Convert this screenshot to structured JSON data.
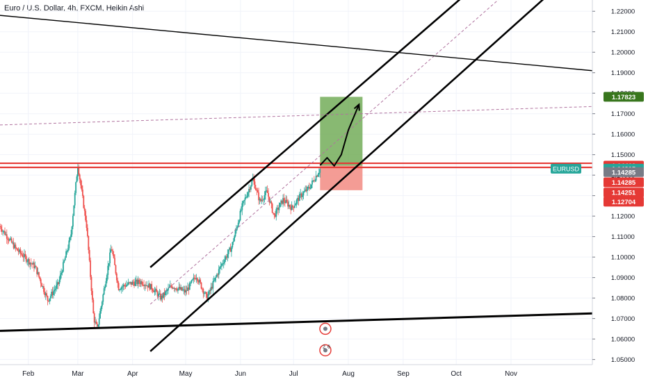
{
  "header": {
    "title": "Euro / U.S. Dollar, 4h, FXCM, Heikin Ashi"
  },
  "colors": {
    "bull": "#26a69a",
    "bear": "#ef5350",
    "channel": "#000000",
    "resistance": "#e53935",
    "target_zone": "#6aa84f",
    "stop_zone": "#f28b82",
    "dashed": "#b0729e",
    "grid": "#f0f3fa",
    "axis_text": "#131722"
  },
  "chart_data": {
    "type": "candlestick",
    "title": "Euro / U.S. Dollar, 4h, FXCM, Heikin Ashi",
    "symbol": "EURUSD",
    "x_ticks": [
      {
        "label": "Feb",
        "day": 31
      },
      {
        "label": "Mar",
        "day": 59
      },
      {
        "label": "Apr",
        "day": 90
      },
      {
        "label": "May",
        "day": 120
      },
      {
        "label": "Jun",
        "day": 151
      },
      {
        "label": "Jul",
        "day": 181
      },
      {
        "label": "Aug",
        "day": 212
      },
      {
        "label": "Sep",
        "day": 243
      },
      {
        "label": "Oct",
        "day": 273
      },
      {
        "label": "Nov",
        "day": 304
      }
    ],
    "x_range_days": [
      15,
      350
    ],
    "y_range": [
      1.0475,
      1.2255
    ],
    "y_ticks": [
      "1.05000",
      "1.06000",
      "1.07000",
      "1.08000",
      "1.09000",
      "1.10000",
      "1.11000",
      "1.12000",
      "1.13000",
      "1.14000",
      "1.15000",
      "1.16000",
      "1.17000",
      "1.18000",
      "1.19000",
      "1.20000",
      "1.21000",
      "1.22000"
    ],
    "price_path": [
      {
        "day": 15,
        "price": 1.115
      },
      {
        "day": 24,
        "price": 1.104
      },
      {
        "day": 35,
        "price": 1.095
      },
      {
        "day": 42,
        "price": 1.079
      },
      {
        "day": 48,
        "price": 1.087
      },
      {
        "day": 55,
        "price": 1.11
      },
      {
        "day": 59,
        "price": 1.145
      },
      {
        "day": 64,
        "price": 1.115
      },
      {
        "day": 68,
        "price": 1.07
      },
      {
        "day": 70,
        "price": 1.065
      },
      {
        "day": 75,
        "price": 1.09
      },
      {
        "day": 78,
        "price": 1.105
      },
      {
        "day": 82,
        "price": 1.085
      },
      {
        "day": 88,
        "price": 1.087
      },
      {
        "day": 95,
        "price": 1.088
      },
      {
        "day": 101,
        "price": 1.085
      },
      {
        "day": 106,
        "price": 1.08
      },
      {
        "day": 112,
        "price": 1.086
      },
      {
        "day": 120,
        "price": 1.083
      },
      {
        "day": 126,
        "price": 1.091
      },
      {
        "day": 132,
        "price": 1.08
      },
      {
        "day": 140,
        "price": 1.096
      },
      {
        "day": 146,
        "price": 1.105
      },
      {
        "day": 152,
        "price": 1.125
      },
      {
        "day": 158,
        "price": 1.138
      },
      {
        "day": 162,
        "price": 1.127
      },
      {
        "day": 166,
        "price": 1.132
      },
      {
        "day": 170,
        "price": 1.12
      },
      {
        "day": 175,
        "price": 1.128
      },
      {
        "day": 180,
        "price": 1.124
      },
      {
        "day": 185,
        "price": 1.13
      },
      {
        "day": 190,
        "price": 1.134
      },
      {
        "day": 196,
        "price": 1.143
      }
    ],
    "levels": [
      {
        "name": "resistance-top",
        "price": 1.1458
      },
      {
        "name": "resistance-bottom",
        "price": 1.1438
      }
    ],
    "trendlines": [
      {
        "name": "channel-upper",
        "from": {
          "day": 100,
          "price": 1.095
        },
        "to": {
          "day": 278,
          "price": 1.228
        }
      },
      {
        "name": "channel-lower",
        "from": {
          "day": 100,
          "price": 1.054
        },
        "to": {
          "day": 325,
          "price": 1.228
        }
      },
      {
        "name": "channel-mid-dashed",
        "from": {
          "day": 100,
          "price": 1.077
        },
        "to": {
          "day": 300,
          "price": 1.228
        }
      },
      {
        "name": "long-resistance",
        "from": {
          "day": 15,
          "price": 1.218
        },
        "to": {
          "day": 350,
          "price": 1.191
        }
      },
      {
        "name": "long-support",
        "from": {
          "day": 15,
          "price": 1.064
        },
        "to": {
          "day": 350,
          "price": 1.0725
        }
      },
      {
        "name": "horizontal-dashed",
        "from": {
          "day": 15,
          "price": 1.1645
        },
        "to": {
          "day": 350,
          "price": 1.1735
        }
      }
    ],
    "position": {
      "start_day": 196,
      "end_day": 220,
      "entry": 1.14462,
      "target": 1.17823,
      "stop": 1.13264
    },
    "projection": [
      {
        "day": 196,
        "price": 1.1448
      },
      {
        "day": 200,
        "price": 1.1485
      },
      {
        "day": 204,
        "price": 1.1445
      },
      {
        "day": 208,
        "price": 1.15
      },
      {
        "day": 212,
        "price": 1.162
      },
      {
        "day": 218,
        "price": 1.1745
      }
    ],
    "price_labels": [
      {
        "text": "1.17823",
        "price": 1.17823,
        "bg": "#38761d",
        "color": "#ffffff"
      },
      {
        "text": "1.14462",
        "price": 1.14462,
        "bg": "#e53935",
        "color": "#ffffff"
      },
      {
        "text": "1.14315",
        "price": 1.14315,
        "bg": "#26a69a",
        "color": "#ffffff",
        "tag": "EURUSD"
      },
      {
        "text": "1.14285",
        "price": 1.1415,
        "bg": "#787b86",
        "color": "#ffffff"
      },
      {
        "text": "1.14285",
        "price": 1.1365,
        "bg": "#e53935",
        "color": "#ffffff"
      },
      {
        "text": "1.14251",
        "price": 1.1315,
        "bg": "#e53935",
        "color": "#ffffff"
      },
      {
        "text": "1.12704",
        "price": 1.12704,
        "bg": "#e53935",
        "color": "#ffffff"
      }
    ],
    "markers": [
      {
        "name": "event-marker-top",
        "day": 199,
        "price": 1.065
      },
      {
        "name": "event-marker-bottom",
        "day": 199,
        "price": 1.0545,
        "labels": [
          "2",
          "6"
        ]
      }
    ]
  }
}
